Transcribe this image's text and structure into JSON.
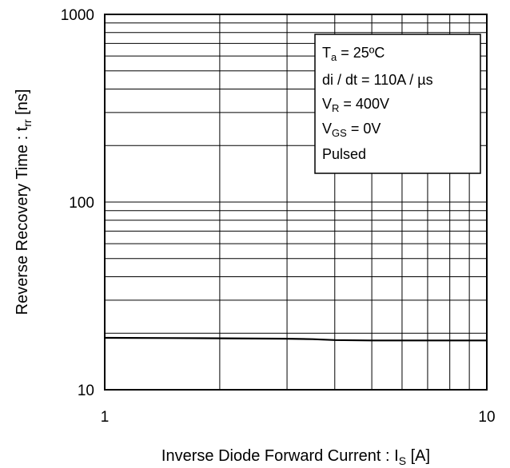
{
  "chart_data": {
    "type": "line",
    "x_scale": "log",
    "y_scale": "log",
    "xlim": [
      1,
      10
    ],
    "ylim": [
      10,
      1000
    ],
    "grid": true,
    "x_ticks": [
      "1",
      "10"
    ],
    "y_ticks": [
      "10",
      "100",
      "1000"
    ],
    "xlabel": {
      "prefix": "Inverse Diode  Forward Current : I",
      "sub": "S",
      "suffix": " [A]"
    },
    "ylabel": {
      "prefix": "Reverse Recovery Time : t",
      "sub": "rr",
      "suffix": " [ns]"
    },
    "legend_placement": "top-right",
    "annotation": {
      "line1": {
        "pre": "T",
        "sub": "a",
        "post": " = 25ºC"
      },
      "line2": {
        "pre": "di / dt = 110A / µs"
      },
      "line3": {
        "pre": "V",
        "sub": "R",
        "post": " = 400V"
      },
      "line4": {
        "pre": "V",
        "sub": "GS",
        "post": " = 0V"
      },
      "line5": {
        "pre": "Pulsed"
      }
    },
    "series": [
      {
        "x": [
          1,
          1.5,
          2,
          3,
          3.5,
          4,
          5,
          7,
          10
        ],
        "values": [
          18.9,
          18.85,
          18.8,
          18.7,
          18.6,
          18.4,
          18.3,
          18.3,
          18.3
        ]
      }
    ]
  }
}
